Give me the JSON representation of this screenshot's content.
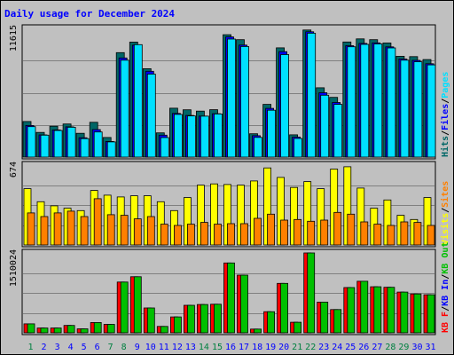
{
  "chart_data": {
    "type": "bar",
    "title": "Daily usage for December 2024",
    "colors": {
      "background": "#c0c0c0",
      "frame": "#000000",
      "title": "#0000ff",
      "grid": "#808080",
      "hits": "#006666",
      "files": "#0000ff",
      "pages": "#00e0ff",
      "visits": "#ffff00",
      "sites": "#ff8000",
      "kbf": "#ff0000",
      "kbin": "#0000ff",
      "kbout": "#00c000",
      "weekend": "#008040",
      "weekday": "#0000ff"
    },
    "categories": [
      "1",
      "2",
      "3",
      "4",
      "5",
      "6",
      "7",
      "8",
      "9",
      "10",
      "11",
      "12",
      "13",
      "14",
      "15",
      "16",
      "17",
      "18",
      "19",
      "20",
      "21",
      "22",
      "23",
      "24",
      "25",
      "26",
      "27",
      "28",
      "29",
      "30",
      "31"
    ],
    "weekend_days": [
      1,
      7,
      8,
      14,
      15,
      21,
      22,
      28,
      29
    ],
    "panels": [
      {
        "id": "hits",
        "max_label": "11615",
        "ymax": 11615,
        "legend": [
          {
            "text": "Hits",
            "color": "#006666"
          },
          {
            "text": "/",
            "color": "#000000"
          },
          {
            "text": "Files",
            "color": "#0000ff"
          },
          {
            "text": "/",
            "color": "#000000"
          },
          {
            "text": "Pages",
            "color": "#00e0ff"
          }
        ],
        "series": [
          {
            "name": "Hits",
            "values": [
              3210,
              2230,
              2790,
              2990,
              2150,
              3140,
              1770,
              9430,
              10380,
              7980,
              2190,
              4410,
              4270,
              4150,
              4280,
              11050,
              10600,
              2110,
              4760,
              9860,
              2010,
              11470,
              6260,
              5390,
              10390,
              10670,
              10600,
              10300,
              9100,
              9070,
              8800
            ]
          },
          {
            "name": "Files",
            "values": [
              2850,
              2000,
              2450,
              2730,
              1750,
              2480,
              1410,
              8950,
              10100,
              7750,
              1980,
              3940,
              3760,
              3700,
              3920,
              10850,
              10110,
              1930,
              4400,
              9520,
              1800,
              11310,
              5810,
              4930,
              10050,
              10260,
              10310,
              9950,
              8850,
              8730,
              8430
            ]
          },
          {
            "name": "Pages",
            "values": [
              2750,
              1980,
              2400,
              2690,
              1670,
              2270,
              1370,
              8750,
              10150,
              7490,
              1760,
              3850,
              3720,
              3690,
              3890,
              10650,
              9980,
              1780,
              4230,
              9250,
              1680,
              11180,
              5580,
              4760,
              9960,
              10170,
              10210,
              9850,
              8750,
              8600,
              8320
            ]
          }
        ]
      },
      {
        "id": "visits",
        "max_label": "674",
        "ymax": 674,
        "legend": [
          {
            "text": "Visits",
            "color": "#ffff00"
          },
          {
            "text": "/",
            "color": "#000000"
          },
          {
            "text": "Sites",
            "color": "#ff8000"
          }
        ],
        "series": [
          {
            "name": "Visits",
            "values": [
              475,
              365,
              330,
              310,
              290,
              460,
              420,
              405,
              415,
              415,
              365,
              290,
              400,
              505,
              515,
              510,
              505,
              540,
              650,
              570,
              485,
              535,
              475,
              640,
              660,
              480,
              310,
              380,
              250,
              215,
              400
            ]
          },
          {
            "name": "Sites",
            "values": [
              270,
              240,
              270,
              285,
              240,
              390,
              255,
              250,
              220,
              240,
              175,
              165,
              175,
              190,
              175,
              180,
              180,
              225,
              260,
              210,
              215,
              200,
              210,
              275,
              260,
              195,
              175,
              165,
              195,
              190,
              165
            ]
          }
        ]
      },
      {
        "id": "kbytes",
        "max_label": "1510024",
        "ymax": 1510024,
        "legend": [
          {
            "text": "KB F",
            "color": "#ff0000"
          },
          {
            "text": "/",
            "color": "#000000"
          },
          {
            "text": "KB In",
            "color": "#0000ff"
          },
          {
            "text": "/",
            "color": "#000000"
          },
          {
            "text": "KB Out",
            "color": "#00c000"
          }
        ],
        "series": [
          {
            "name": "KB F",
            "values": [
              170000,
              90000,
              90000,
              140000,
              75000,
              195000,
              160000,
              960000,
              1060000,
              470000,
              120000,
              300000,
              520000,
              535000,
              540000,
              1320000,
              1090000,
              70000,
              400000,
              935000,
              200000,
              1510024,
              580000,
              440000,
              855000,
              975000,
              870000,
              860000,
              770000,
              735000,
              720000
            ]
          },
          {
            "name": "KB Out",
            "values": [
              170000,
              90000,
              90000,
              140000,
              75000,
              195000,
              160000,
              960000,
              1060000,
              470000,
              120000,
              300000,
              520000,
              535000,
              540000,
              1320000,
              1090000,
              70000,
              400000,
              935000,
              200000,
              1510024,
              580000,
              440000,
              855000,
              975000,
              870000,
              860000,
              770000,
              735000,
              720000
            ]
          }
        ]
      }
    ]
  }
}
